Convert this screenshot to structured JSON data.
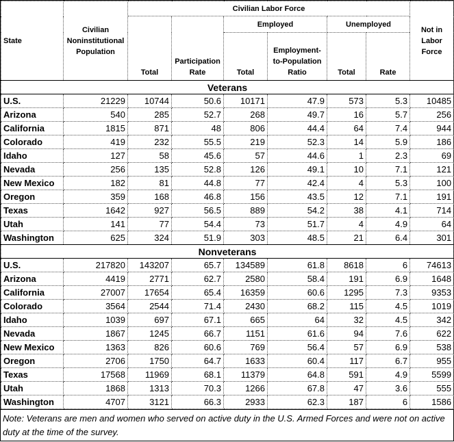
{
  "table": {
    "header": {
      "state": "State",
      "population": "Civilian Noninstitutional Population",
      "labor_force": "Civilian Labor Force",
      "employed": "Employed",
      "unemployed": "Unemployed",
      "lf_total": "Total",
      "participation_rate": "Participation Rate",
      "employed_total": "Total",
      "employment_ratio": "Employment-to-Population Ratio",
      "unemployed_total": "Total",
      "unemployment_rate": "Rate",
      "not_in_labor_force": "Not in Labor Force"
    },
    "sections": [
      {
        "title": "Veterans",
        "rows": [
          [
            "U.S.",
            21229,
            10744,
            50.6,
            10171,
            47.9,
            573,
            5.3,
            10485
          ],
          [
            "Arizona",
            540,
            285,
            52.7,
            268,
            49.7,
            16,
            5.7,
            256
          ],
          [
            "California",
            1815,
            871,
            48,
            806,
            44.4,
            64,
            7.4,
            944
          ],
          [
            "Colorado",
            419,
            232,
            55.5,
            219,
            52.3,
            14,
            5.9,
            186
          ],
          [
            "Idaho",
            127,
            58,
            45.6,
            57,
            44.6,
            1,
            2.3,
            69
          ],
          [
            "Nevada",
            256,
            135,
            52.8,
            126,
            49.1,
            10,
            7.1,
            121
          ],
          [
            "New Mexico",
            182,
            81,
            44.8,
            77,
            42.4,
            4,
            5.3,
            100
          ],
          [
            "Oregon",
            359,
            168,
            46.8,
            156,
            43.5,
            12,
            7.1,
            191
          ],
          [
            "Texas",
            1642,
            927,
            56.5,
            889,
            54.2,
            38,
            4.1,
            714
          ],
          [
            "Utah",
            141,
            77,
            54.4,
            73,
            51.7,
            4,
            4.9,
            64
          ],
          [
            "Washington",
            625,
            324,
            51.9,
            303,
            48.5,
            21,
            6.4,
            301
          ]
        ]
      },
      {
        "title": "Nonveterans",
        "rows": [
          [
            "U.S.",
            217820,
            143207,
            65.7,
            134589,
            61.8,
            8618,
            6,
            74613
          ],
          [
            "Arizona",
            4419,
            2771,
            62.7,
            2580,
            58.4,
            191,
            6.9,
            1648
          ],
          [
            "California",
            27007,
            17654,
            65.4,
            16359,
            60.6,
            1295,
            7.3,
            9353
          ],
          [
            "Colorado",
            3564,
            2544,
            71.4,
            2430,
            68.2,
            115,
            4.5,
            1019
          ],
          [
            "Idaho",
            1039,
            697,
            67.1,
            665,
            64,
            32,
            4.5,
            342
          ],
          [
            "Nevada",
            1867,
            1245,
            66.7,
            1151,
            61.6,
            94,
            7.6,
            622
          ],
          [
            "New Mexico",
            1363,
            826,
            60.6,
            769,
            56.4,
            57,
            6.9,
            538
          ],
          [
            "Oregon",
            2706,
            1750,
            64.7,
            1633,
            60.4,
            117,
            6.7,
            955
          ],
          [
            "Texas",
            17568,
            11969,
            68.1,
            11379,
            64.8,
            591,
            4.9,
            5599
          ],
          [
            "Utah",
            1868,
            1313,
            70.3,
            1266,
            67.8,
            47,
            3.6,
            555
          ],
          [
            "Washington",
            4707,
            3121,
            66.3,
            2933,
            62.3,
            187,
            6,
            1586
          ]
        ]
      }
    ]
  },
  "note": "Note: Veterans are men and women who served on active duty in the U.S. Armed Forces and were not on active duty at the time of the survey."
}
